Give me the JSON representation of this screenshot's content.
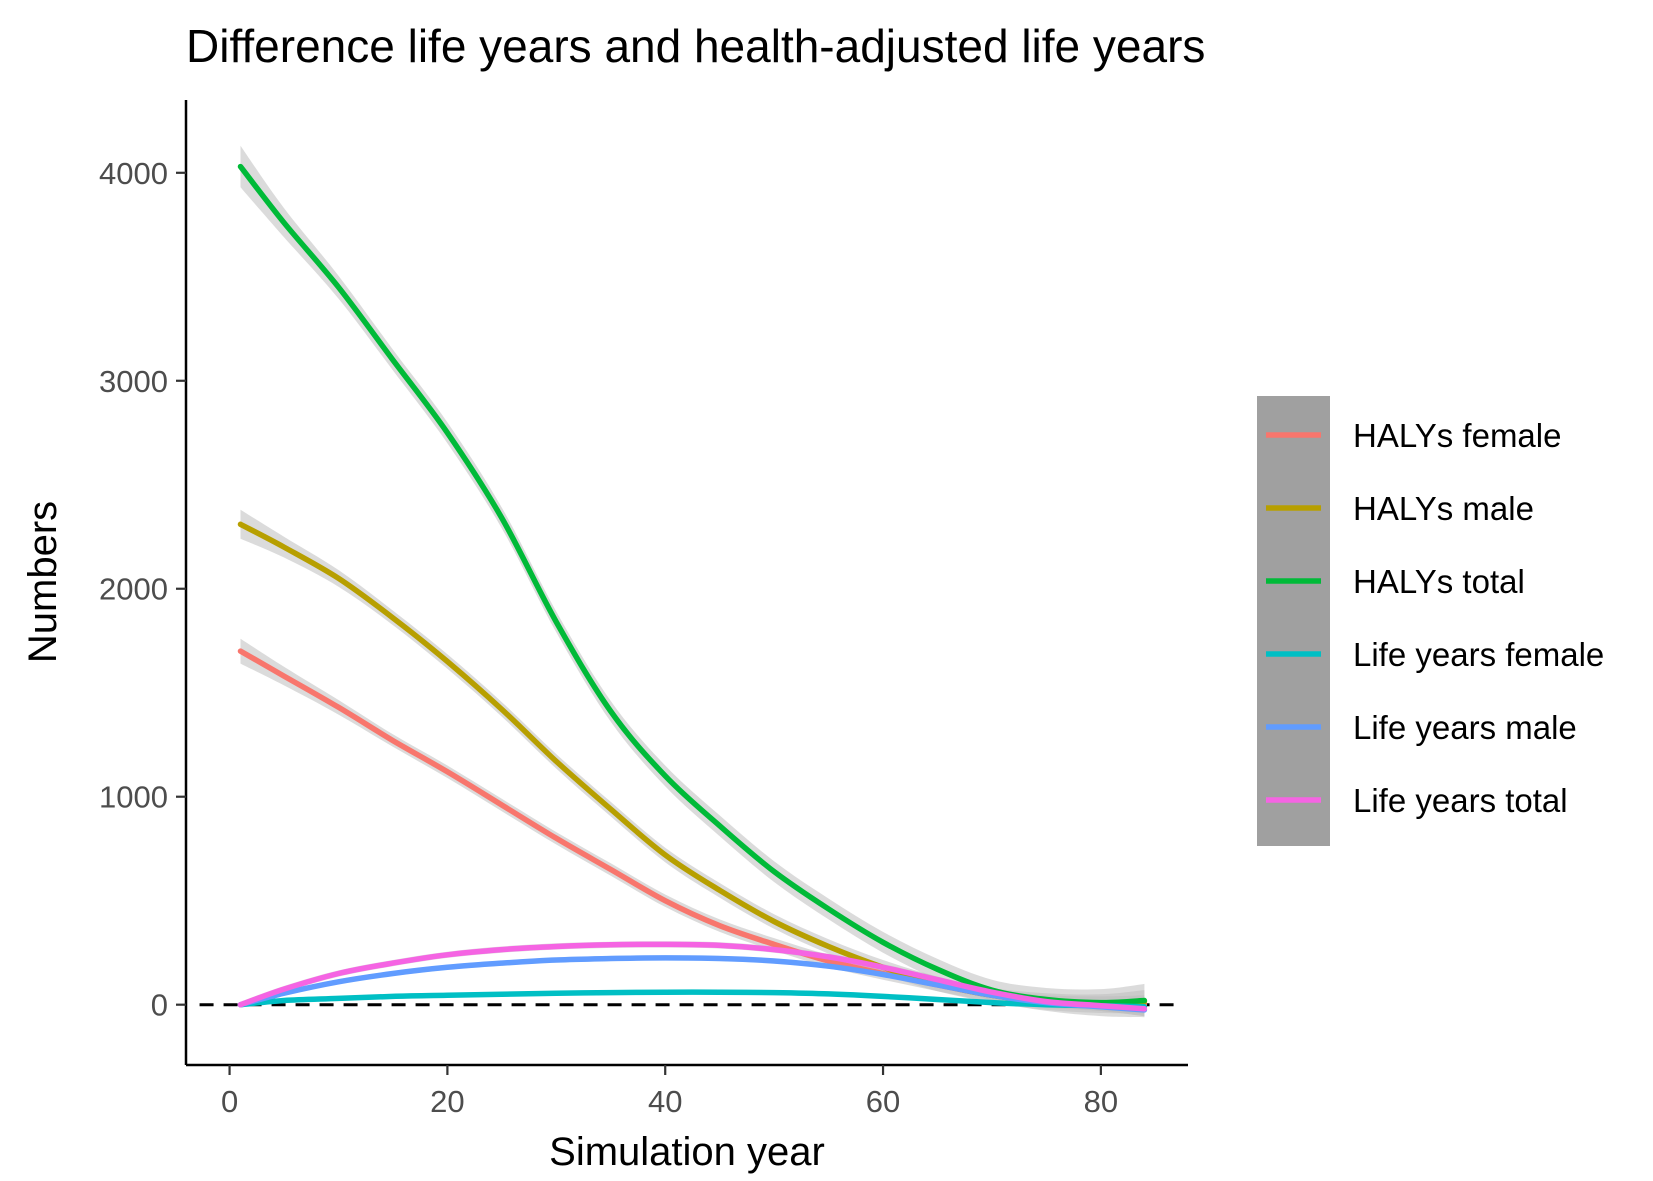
{
  "chart_data": {
    "type": "line",
    "title": "Difference life years and health-adjusted life years",
    "xlabel": "Simulation year",
    "ylabel": "Numbers",
    "xlim": [
      -4,
      88
    ],
    "ylim": [
      -290,
      4350
    ],
    "xticks": [
      0,
      20,
      40,
      60,
      80
    ],
    "yticks": [
      0,
      1000,
      2000,
      3000,
      4000
    ],
    "xtick_labels": [
      "0",
      "20",
      "40",
      "60",
      "80"
    ],
    "ytick_labels": [
      "0",
      "1000",
      "2000",
      "3000",
      "4000"
    ],
    "reference_line": {
      "y": 0,
      "style": "dashed",
      "color": "#000000"
    },
    "grid": false,
    "legend_position": "right",
    "legend_background": "#a0a0a0",
    "confidence_band_color": "#bebebe",
    "x": [
      1,
      5,
      10,
      15,
      20,
      25,
      30,
      35,
      40,
      45,
      50,
      55,
      60,
      65,
      70,
      75,
      80,
      84
    ],
    "series": [
      {
        "name": "HALYs female",
        "color": "#f8766d",
        "values": [
          1700,
          1580,
          1430,
          1270,
          1120,
          960,
          800,
          650,
          500,
          380,
          290,
          210,
          150,
          95,
          45,
          15,
          5,
          0
        ],
        "band": [
          60,
          45,
          35,
          30,
          30,
          30,
          30,
          30,
          30,
          30,
          30,
          30,
          30,
          30,
          30,
          30,
          35,
          45
        ]
      },
      {
        "name": "HALYs male",
        "color": "#b79f00",
        "values": [
          2310,
          2200,
          2050,
          1860,
          1650,
          1420,
          1170,
          940,
          720,
          550,
          400,
          280,
          180,
          100,
          45,
          15,
          5,
          15
        ],
        "band": [
          70,
          50,
          40,
          35,
          35,
          35,
          35,
          35,
          35,
          35,
          35,
          35,
          35,
          35,
          35,
          40,
          45,
          55
        ]
      },
      {
        "name": "HALYs total",
        "color": "#00ba38",
        "values": [
          4030,
          3760,
          3450,
          3100,
          2750,
          2340,
          1840,
          1410,
          1100,
          860,
          640,
          460,
          300,
          170,
          70,
          25,
          10,
          20
        ],
        "band": [
          100,
          70,
          55,
          50,
          50,
          50,
          50,
          50,
          50,
          50,
          50,
          50,
          50,
          50,
          50,
          55,
          65,
          80
        ]
      },
      {
        "name": "Life years female",
        "color": "#00bfc4",
        "values": [
          0,
          20,
          30,
          40,
          45,
          50,
          55,
          58,
          60,
          60,
          58,
          52,
          40,
          25,
          10,
          0,
          -5,
          -10
        ],
        "band": [
          8,
          8,
          8,
          8,
          8,
          8,
          8,
          8,
          8,
          8,
          8,
          8,
          8,
          8,
          8,
          8,
          8,
          10
        ]
      },
      {
        "name": "Life years male",
        "color": "#619cff",
        "values": [
          0,
          55,
          110,
          150,
          180,
          200,
          215,
          222,
          225,
          222,
          210,
          185,
          145,
          95,
          45,
          10,
          -10,
          -25
        ],
        "band": [
          12,
          12,
          12,
          12,
          12,
          12,
          12,
          12,
          12,
          12,
          12,
          12,
          12,
          12,
          12,
          15,
          20,
          30
        ]
      },
      {
        "name": "Life years total",
        "color": "#f564e3",
        "values": [
          0,
          75,
          150,
          200,
          240,
          265,
          280,
          288,
          290,
          285,
          265,
          230,
          180,
          120,
          60,
          15,
          -5,
          -20
        ],
        "band": [
          15,
          15,
          15,
          15,
          15,
          15,
          15,
          15,
          15,
          15,
          15,
          15,
          15,
          15,
          15,
          18,
          25,
          35
        ]
      }
    ]
  }
}
